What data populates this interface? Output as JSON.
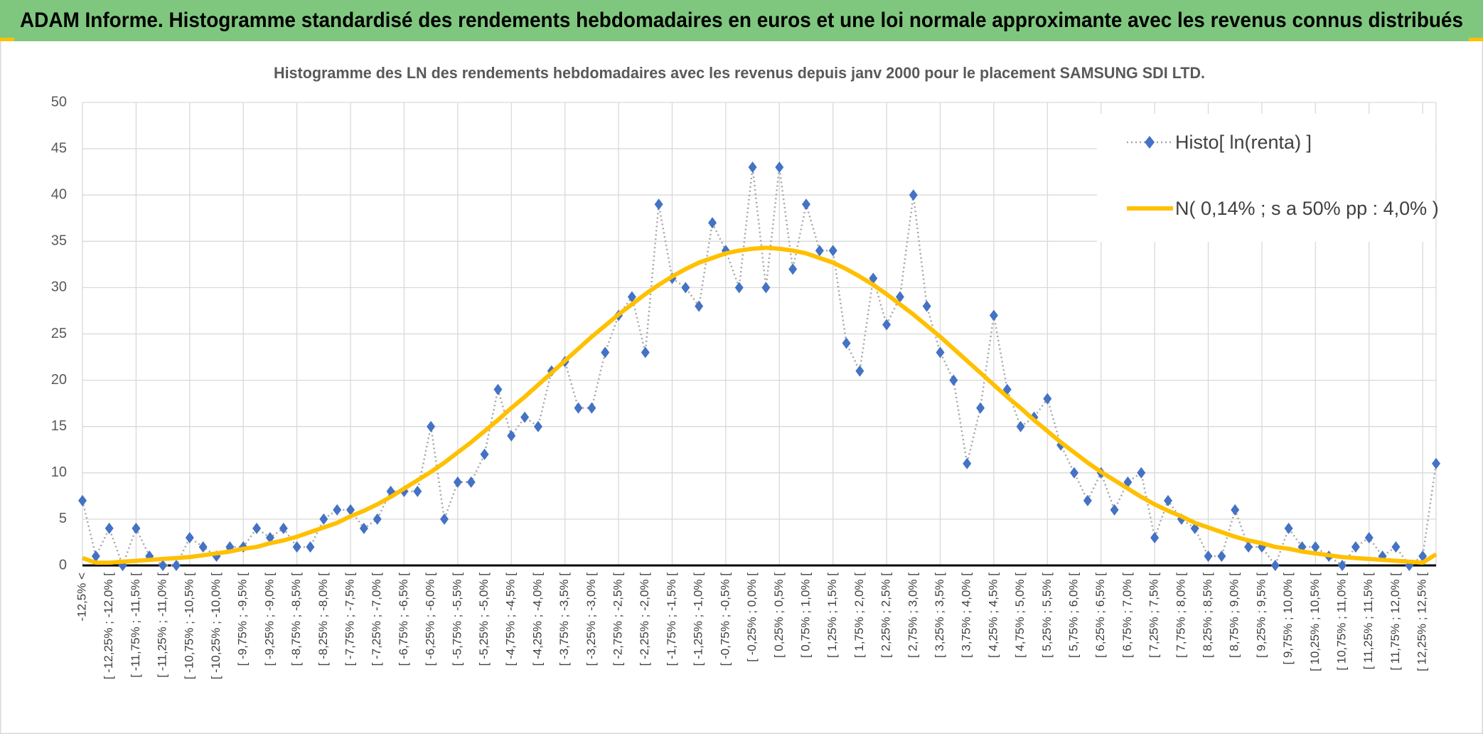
{
  "header": {
    "title": "ADAM Informe. Histogramme standardisé des rendements hebdomadaires en euros et une loi normale approximante avec les revenus connus distribués"
  },
  "chart_data": {
    "type": "line",
    "title": "Histogramme des LN des rendements hebdomadaires avec les revenus depuis janv 2000 pour le placement SAMSUNG SDI LTD.",
    "categories": [
      "-12,5% <",
      null,
      "[ -12,25% ; -12,0% [",
      null,
      "[ -11,75% ; -11,5% [",
      null,
      "[ -11,25% ; -11,0% [",
      null,
      "[ -10,75% ; -10,5% [",
      null,
      "[ -10,25% ; -10,0% [",
      null,
      "[ -9,75% ; -9,5% [",
      null,
      "[ -9,25% ; -9,0% [",
      null,
      "[ -8,75% ; -8,5% [",
      null,
      "[ -8,25% ; -8,0% [",
      null,
      "[ -7,75% ; -7,5% [",
      null,
      "[ -7,25% ; -7,0% [",
      null,
      "[ -6,75% ; -6,5% [",
      null,
      "[ -6,25% ; -6,0% [",
      null,
      "[ -5,75% ; -5,5% [",
      null,
      "[ -5,25% ; -5,0% [",
      null,
      "[ -4,75% ; -4,5% [",
      null,
      "[ -4,25% ; -4,0% [",
      null,
      "[ -3,75% ; -3,5% [",
      null,
      "[ -3,25% ; -3,0% [",
      null,
      "[ -2,75% ; -2,5% [",
      null,
      "[ -2,25% ; -2,0% [",
      null,
      "[ -1,75% ; -1,5% [",
      null,
      "[ -1,25% ; -1,0% [",
      null,
      "[ -0,75% ; -0,5% [",
      null,
      "[ -0,25% ; 0,0% [",
      null,
      "[ 0,25% ; 0,5% [",
      null,
      "[ 0,75% ; 1,0% [",
      null,
      "[ 1,25% ; 1,5% [",
      null,
      "[ 1,75% ; 2,0% [",
      null,
      "[ 2,25% ; 2,5% [",
      null,
      "[ 2,75% ; 3,0% [",
      null,
      "[ 3,25% ; 3,5% [",
      null,
      "[ 3,75% ; 4,0% [",
      null,
      "[ 4,25% ; 4,5% [",
      null,
      "[ 4,75% ; 5,0% [",
      null,
      "[ 5,25% ; 5,5% [",
      null,
      "[ 5,75% ; 6,0% [",
      null,
      "[ 6,25% ; 6,5% [",
      null,
      "[ 6,75% ; 7,0% [",
      null,
      "[ 7,25% ; 7,5% [",
      null,
      "[ 7,75% ; 8,0% [",
      null,
      "[ 8,25% ; 8,5% [",
      null,
      "[ 8,75% ; 9,0% [",
      null,
      "[ 9,25% ; 9,5% [",
      null,
      "[ 9,75% ; 10,0% [",
      null,
      "[ 10,25% ; 10,5% [",
      null,
      "[ 10,75% ; 11,0% [",
      null,
      "[ 11,25% ; 11,5% [",
      null,
      "[ 11,75% ; 12,0% [",
      null,
      "[ 12,25% ; 12,5% [",
      null
    ],
    "series": [
      {
        "name": "Histo[ ln(renta) ]",
        "color": "#4472c4",
        "line_color": "#a5a5a5",
        "marker": "diamond",
        "values": [
          7,
          1,
          4,
          0,
          4,
          1,
          0,
          0,
          3,
          2,
          1,
          2,
          2,
          4,
          3,
          4,
          2,
          2,
          5,
          6,
          6,
          4,
          5,
          8,
          8,
          8,
          15,
          5,
          9,
          9,
          12,
          19,
          14,
          16,
          15,
          21,
          22,
          17,
          17,
          23,
          27,
          29,
          23,
          39,
          31,
          30,
          28,
          37,
          34,
          30,
          43,
          30,
          43,
          32,
          39,
          34,
          34,
          24,
          21,
          31,
          26,
          29,
          40,
          28,
          23,
          20,
          11,
          17,
          27,
          19,
          15,
          16,
          18,
          13,
          10,
          7,
          10,
          6,
          9,
          10,
          3,
          7,
          5,
          4,
          1,
          1,
          6,
          2,
          2,
          0,
          4,
          2,
          2,
          1,
          0,
          2,
          3,
          1,
          2,
          0,
          1,
          11
        ]
      },
      {
        "name": "N( 0,14% ; s a 50% pp : 4,0% )",
        "color": "#ffc000",
        "values": [
          0.8,
          0.3,
          0.3,
          0.4,
          0.5,
          0.6,
          0.7,
          0.8,
          0.9,
          1.1,
          1.3,
          1.5,
          1.8,
          2.0,
          2.4,
          2.7,
          3.1,
          3.6,
          4.1,
          4.6,
          5.3,
          5.9,
          6.6,
          7.4,
          8.3,
          9.2,
          10.1,
          11.1,
          12.2,
          13.3,
          14.5,
          15.7,
          17.0,
          18.2,
          19.5,
          20.8,
          22.1,
          23.4,
          24.7,
          25.9,
          27.1,
          28.2,
          29.3,
          30.3,
          31.2,
          32.0,
          32.7,
          33.2,
          33.7,
          34.0,
          34.2,
          34.3,
          34.2,
          34.0,
          33.7,
          33.2,
          32.7,
          32.0,
          31.2,
          30.3,
          29.3,
          28.2,
          27.1,
          25.9,
          24.7,
          23.4,
          22.1,
          20.8,
          19.5,
          18.2,
          17.0,
          15.7,
          14.5,
          13.3,
          12.2,
          11.1,
          10.1,
          9.2,
          8.3,
          7.4,
          6.6,
          5.9,
          5.3,
          4.6,
          4.1,
          3.6,
          3.1,
          2.7,
          2.4,
          2.0,
          1.8,
          1.5,
          1.3,
          1.1,
          0.9,
          0.8,
          0.7,
          0.6,
          0.5,
          0.4,
          0.3,
          1.2
        ]
      }
    ],
    "ylim": [
      0,
      50
    ],
    "yticks": [
      0,
      5,
      10,
      15,
      20,
      25,
      30,
      35,
      40,
      45,
      50
    ],
    "grid": true,
    "legend": "top-right"
  }
}
